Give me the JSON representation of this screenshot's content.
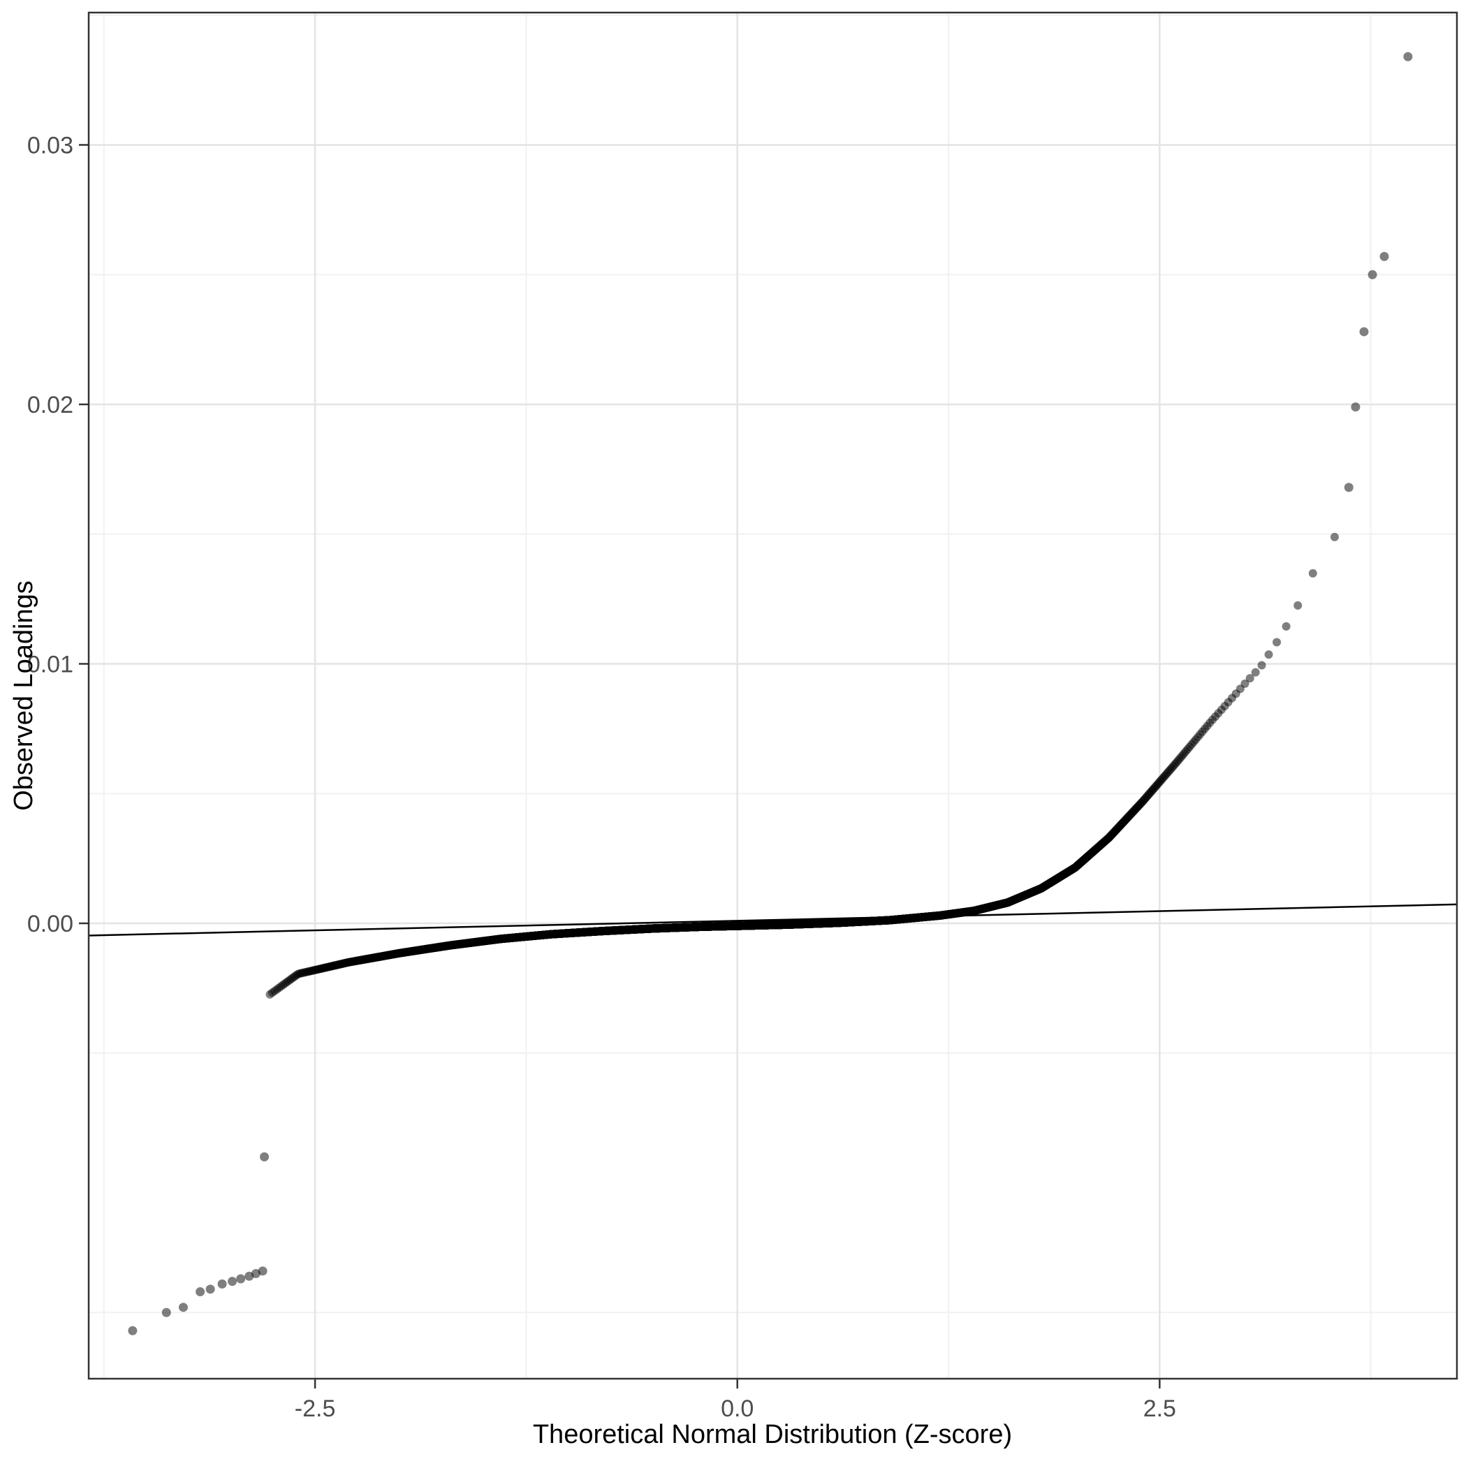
{
  "page": {
    "background": "#ffffff"
  },
  "chart_data": {
    "type": "scatter",
    "title": "",
    "xlabel": "Theoretical Normal Distribution (Z-score)",
    "ylabel": "Observed Loadings",
    "xlim": [
      -3.84,
      4.26
    ],
    "ylim": [
      -0.01755,
      0.0351
    ],
    "x_ticks": [
      {
        "value": -2.5,
        "label": "-2.5"
      },
      {
        "value": 0,
        "label": "0.0"
      },
      {
        "value": 2.5,
        "label": "2.5"
      }
    ],
    "y_ticks": [
      {
        "value": 0,
        "label": "0.00"
      },
      {
        "value": 0.01,
        "label": "0.01"
      },
      {
        "value": 0.02,
        "label": "0.02"
      },
      {
        "value": 0.03,
        "label": "0.03"
      }
    ],
    "x_minor_gridlines": [
      -3.75,
      -1.25,
      1.25,
      3.75
    ],
    "y_minor_gridlines": [
      -0.015,
      -0.005,
      0.005,
      0.015,
      0.025,
      0.035
    ],
    "grid": true,
    "legend": false,
    "n_points": 8000,
    "generated_z_min": -2.78,
    "generated_z_max": 3.55,
    "curve_anchors": [
      [
        -2.78,
        -0.0028
      ],
      [
        -2.6,
        -0.00195
      ],
      [
        -2.3,
        -0.0015
      ],
      [
        -2.0,
        -0.00115
      ],
      [
        -1.7,
        -0.00085
      ],
      [
        -1.4,
        -0.0006
      ],
      [
        -1.1,
        -0.00042
      ],
      [
        -0.8,
        -0.0003
      ],
      [
        -0.5,
        -0.0002
      ],
      [
        -0.2,
        -0.00013
      ],
      [
        0.0,
        -0.0001
      ],
      [
        0.3,
        -5e-05
      ],
      [
        0.6,
        2e-05
      ],
      [
        0.9,
        0.00012
      ],
      [
        1.2,
        0.0003
      ],
      [
        1.4,
        0.00048
      ],
      [
        1.6,
        0.0008
      ],
      [
        1.8,
        0.00135
      ],
      [
        2.0,
        0.00215
      ],
      [
        2.2,
        0.0033
      ],
      [
        2.4,
        0.0047
      ],
      [
        2.6,
        0.0062
      ],
      [
        2.8,
        0.00775
      ],
      [
        3.0,
        0.0092
      ],
      [
        3.1,
        0.0099
      ],
      [
        3.2,
        0.0109
      ],
      [
        3.3,
        0.012
      ],
      [
        3.38,
        0.0131
      ],
      [
        3.45,
        0.0141
      ],
      [
        3.5,
        0.0146
      ],
      [
        3.55,
        0.015
      ]
    ],
    "low_tail_points": [
      [
        -3.58,
        -0.0157
      ],
      [
        -3.38,
        -0.015
      ],
      [
        -3.28,
        -0.0148
      ],
      [
        -3.18,
        -0.0142
      ],
      [
        -3.12,
        -0.0141
      ],
      [
        -3.05,
        -0.0139
      ],
      [
        -2.99,
        -0.0138
      ],
      [
        -2.94,
        -0.0137
      ],
      [
        -2.89,
        -0.0136
      ],
      [
        -2.85,
        -0.0135
      ],
      [
        -2.81,
        -0.0134
      ],
      [
        -2.8,
        -0.009
      ]
    ],
    "high_tail_points": [
      [
        3.62,
        0.0168
      ],
      [
        3.66,
        0.0199
      ],
      [
        3.71,
        0.0228
      ],
      [
        3.76,
        0.025
      ],
      [
        3.83,
        0.0257
      ],
      [
        3.97,
        0.0334
      ]
    ],
    "reference_line": {
      "x1": -3.84,
      "y1": -0.00047,
      "x2": 4.26,
      "y2": 0.00073
    },
    "style": {
      "point_color": "#000000",
      "point_opacity": 0.5,
      "point_radius": 6,
      "outlier_radius": 6.5,
      "reference_line_color": "#000000",
      "reference_line_width": 2.5,
      "grid_major_color": "#e4e4e4",
      "grid_minor_color": "#f1f1f1",
      "panel_border_color": "#333333",
      "panel_border_width": 2.5,
      "tick_color": "#333333",
      "tick_label_color": "#4d4d4d",
      "axis_title_color": "#000000",
      "panel_background": "#ffffff"
    }
  }
}
